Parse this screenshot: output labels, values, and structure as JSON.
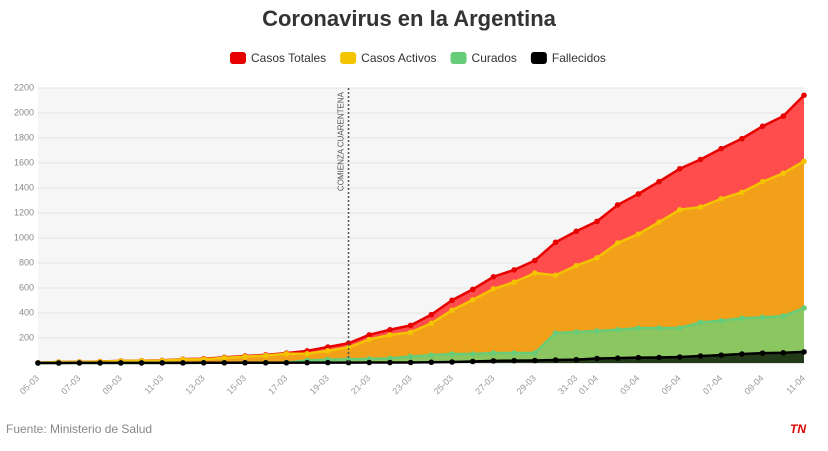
{
  "chart_data": {
    "type": "area",
    "title": "Coronavirus en la Argentina",
    "annotation": "COMIENZA CUARENTENA",
    "source": "Fuente: Ministerio de Salud",
    "logo": "TN",
    "categories": [
      "05-03",
      null,
      "07-03",
      null,
      "09-03",
      null,
      "11-03",
      null,
      "13-03",
      null,
      "15-03",
      null,
      "17-03",
      null,
      "19-03",
      null,
      "21-03",
      null,
      "23-03",
      null,
      "25-03",
      null,
      "27-03",
      null,
      "29-03",
      null,
      "31-03",
      "01-04",
      null,
      "03-04",
      null,
      "05-04",
      null,
      "07-04",
      null,
      "09-04",
      null,
      "11-04"
    ],
    "ylim": [
      0,
      2200
    ],
    "yticks": [
      200,
      400,
      600,
      800,
      1000,
      1200,
      1400,
      1600,
      1800,
      2000,
      2200
    ],
    "grid": true,
    "series": [
      {
        "name": "Casos Totales",
        "color": "#e60000",
        "fill": "#ff4c4c",
        "values": [
          2,
          8,
          9,
          12,
          17,
          19,
          21,
          31,
          34,
          45,
          56,
          65,
          79,
          97,
          128,
          158,
          225,
          266,
          301,
          387,
          502,
          589,
          690,
          745,
          820,
          966,
          1054,
          1133,
          1265,
          1353,
          1451,
          1554,
          1628,
          1715,
          1795,
          1894,
          1975,
          2142
        ]
      },
      {
        "name": "Casos Activos",
        "color": "#f5c400",
        "fill": "#f29f1a",
        "values": [
          2,
          8,
          8,
          11,
          16,
          18,
          19,
          29,
          30,
          41,
          51,
          60,
          74,
          74,
          98,
          125,
          188,
          225,
          245,
          318,
          422,
          505,
          593,
          646,
          720,
          702,
          779,
          841,
          960,
          1031,
          1127,
          1226,
          1247,
          1314,
          1365,
          1450,
          1518,
          1613
        ]
      },
      {
        "name": "Curados",
        "color": "#66cc77",
        "fill": "#8cc660",
        "values": [
          0,
          0,
          0,
          0,
          0,
          0,
          1,
          1,
          2,
          2,
          3,
          3,
          3,
          20,
          27,
          30,
          33,
          37,
          52,
          63,
          72,
          72,
          80,
          80,
          80,
          240,
          248,
          256,
          266,
          279,
          280,
          280,
          325,
          338,
          358,
          365,
          375,
          440
        ]
      },
      {
        "name": "Fallecidos",
        "color": "#000000",
        "fill": "#243b1a",
        "values": [
          0,
          0,
          1,
          1,
          1,
          1,
          1,
          1,
          2,
          2,
          2,
          2,
          2,
          3,
          3,
          3,
          4,
          4,
          4,
          6,
          8,
          12,
          17,
          19,
          20,
          24,
          27,
          36,
          39,
          43,
          44,
          48,
          56,
          63,
          72,
          79,
          82,
          89
        ]
      }
    ]
  }
}
